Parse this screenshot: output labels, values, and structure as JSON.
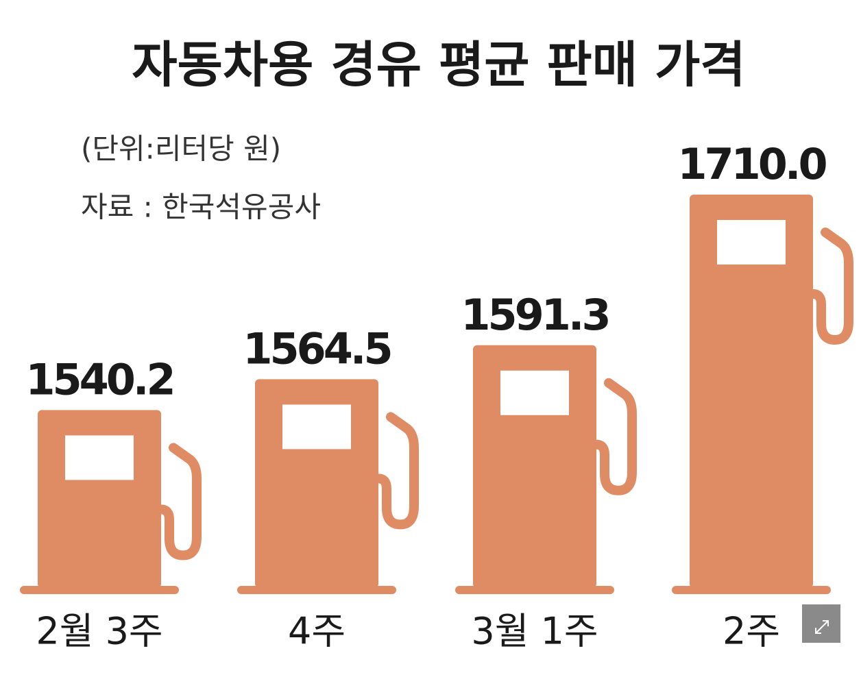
{
  "chart_data": {
    "type": "pictorial-bar",
    "title": "자동차용 경유 평균 판매 가격",
    "subtitle": "(단위:리터당 원)",
    "source": "자료 : 한국석유공사",
    "categories": [
      "2월 3주",
      "4주",
      "3월 1주",
      "2주"
    ],
    "values": [
      1540.2,
      1564.5,
      1591.3,
      1710.0
    ],
    "value_labels": [
      "1540.2",
      "1564.5",
      "1591.3",
      "1710.0"
    ],
    "color": "#df8c65",
    "ylim": [
      1400,
      1710
    ]
  }
}
